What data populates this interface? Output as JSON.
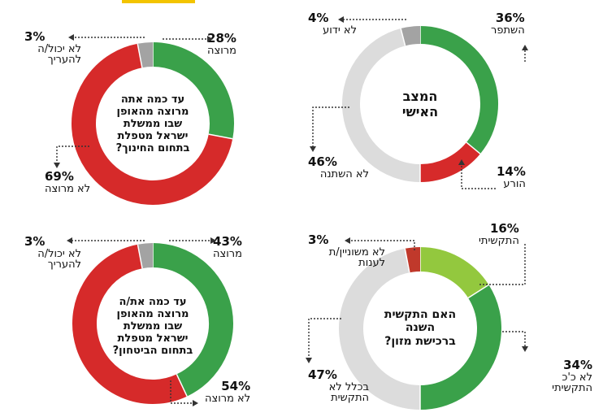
{
  "chart_data": [
    {
      "type": "pie",
      "title": "עד כמה אתה מרוצה מהאופן שבו ממשלת ישראל מטפלת בתחום החינוך?",
      "categories": [
        "מרוצה",
        "לא מרוצה",
        "לא יכול/ה להעריך"
      ],
      "values": [
        28,
        69,
        3
      ],
      "value_labels": [
        "28%",
        "69%",
        "3%"
      ],
      "colors": [
        "#3aa14a",
        "#d62a2a",
        "#a3a3a3"
      ]
    },
    {
      "type": "pie",
      "title": "המצב האישי",
      "categories": [
        "השתפר",
        "הורע",
        "לא השתנה",
        "לא ידוע"
      ],
      "values": [
        36,
        14,
        46,
        4
      ],
      "value_labels": [
        "36%",
        "14%",
        "46%",
        "4%"
      ],
      "colors": [
        "#3aa14a",
        "#d62a2a",
        "#dcdcdc",
        "#a3a3a3"
      ]
    },
    {
      "type": "pie",
      "title": "עד כמה את/ה מרוצה מהאופן שבו ממשלת ישראל מטפלת בתחום הביטחון?",
      "categories": [
        "מרוצה",
        "לא מרוצה",
        "לא יכול/ה להעריך"
      ],
      "values": [
        43,
        54,
        3
      ],
      "value_labels": [
        "43%",
        "54%",
        "3%"
      ],
      "colors": [
        "#3aa14a",
        "#d62a2a",
        "#a3a3a3"
      ]
    },
    {
      "type": "pie",
      "title": "האם התקשית השנה ברכישת מזון?",
      "categories": [
        "התקשיתי",
        "לא כ'כ התקשיתי",
        "בכלל לא התקשית",
        "לא משוניין/ת לענות"
      ],
      "values": [
        16,
        34,
        47,
        3
      ],
      "value_labels": [
        "16%",
        "34%",
        "47%",
        "3%"
      ],
      "colors": [
        "#93c83e",
        "#3aa14a",
        "#dcdcdc",
        "#c0392b"
      ]
    }
  ],
  "labels": {
    "c0_top_left_label": "לא יכול/ה להעריך",
    "c2_top_left_label": "לא יכול/ה להעריך",
    "c3_label_3": "לא משוניין/ת לענות"
  }
}
